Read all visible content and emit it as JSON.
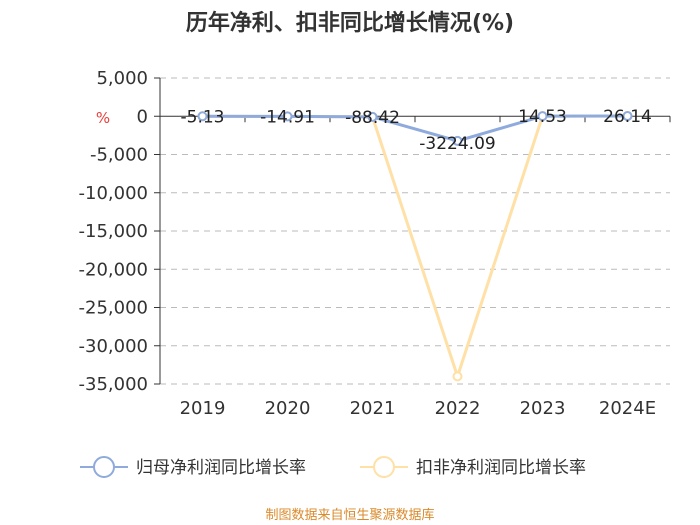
{
  "chart_data": {
    "type": "line",
    "title": "历年净利、扣非同比增长情况(%)",
    "ylabel": "%",
    "categories": [
      "2019",
      "2020",
      "2021",
      "2022",
      "2023",
      "2024E"
    ],
    "ylim": [
      -35000,
      5000
    ],
    "yticks": [
      5000,
      0,
      -5000,
      -10000,
      -15000,
      -20000,
      -25000,
      -30000,
      -35000
    ],
    "ytick_labels": [
      "5,000",
      "0",
      "-5,000",
      "-10,000",
      "-15,000",
      "-20,000",
      "-25,000",
      "-30,000",
      "-35,000"
    ],
    "grid": true,
    "legend_position": "bottom",
    "series": [
      {
        "name": "归母净利润同比增长率",
        "values": [
          -5.13,
          -14.91,
          -88.42,
          -3224.09,
          14.53,
          26.14
        ],
        "labels": [
          "-5.13",
          "-14.91",
          "-88.42",
          "-3224.09",
          "14.53",
          "26.14"
        ],
        "color": "#8faadc"
      },
      {
        "name": "扣非净利润同比增长率",
        "values": [
          -5.13,
          -14.91,
          -88.42,
          -34000,
          14.53,
          26.14
        ],
        "color": "#ffe0a6"
      }
    ]
  },
  "source": "制图数据来自恒生聚源数据库",
  "colors": {
    "unit": "#e8413c",
    "source": "#d98a2b",
    "axis": "#333333",
    "grid": "#bbbbbb"
  }
}
